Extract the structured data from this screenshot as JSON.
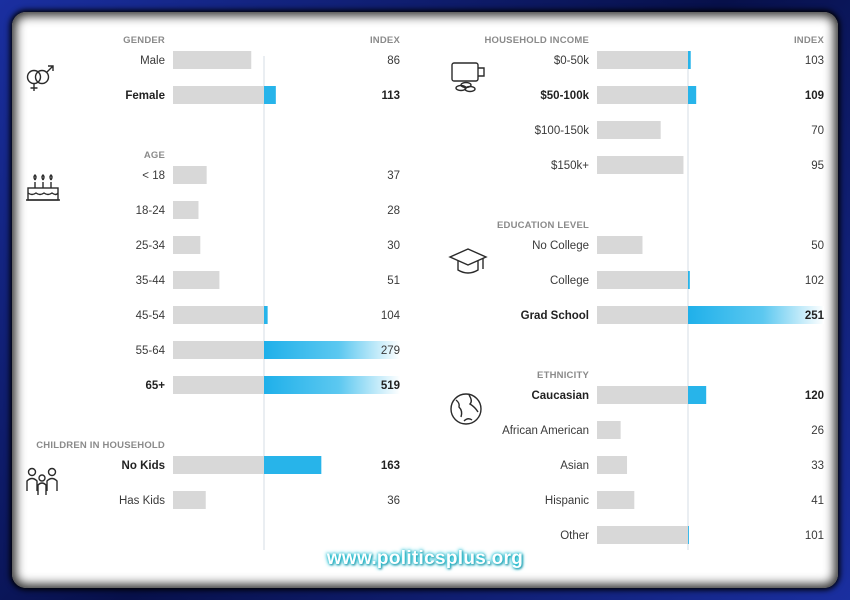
{
  "watermark": "www.politicsplus.org",
  "colors": {
    "bar_base": "#d8d8d8",
    "bar_over": "#27b4ea",
    "baseline": "#d4dde4"
  },
  "chart_data": {
    "type": "bar",
    "baseline_index": 100,
    "panels": [
      {
        "id": "left",
        "index_header": "INDEX",
        "sections": [
          {
            "title": "GENDER",
            "icon": "gender-icon",
            "categories": [
              "Male",
              "Female"
            ],
            "values": [
              86,
              113
            ],
            "bold": [
              false,
              true
            ]
          },
          {
            "title": "AGE",
            "icon": "birthday-cake-icon",
            "categories": [
              "< 18",
              "18-24",
              "25-34",
              "35-44",
              "45-54",
              "55-64",
              "65+"
            ],
            "values": [
              37,
              28,
              30,
              51,
              104,
              279,
              519
            ],
            "bold": [
              false,
              false,
              false,
              false,
              false,
              false,
              true
            ]
          },
          {
            "title": "CHILDREN IN HOUSEHOLD",
            "icon": "family-icon",
            "categories": [
              "No Kids",
              "Has Kids"
            ],
            "values": [
              163,
              36
            ],
            "bold": [
              true,
              false
            ]
          }
        ]
      },
      {
        "id": "right",
        "index_header": "INDEX",
        "sections": [
          {
            "title": "HOUSEHOLD INCOME",
            "icon": "wallet-icon",
            "categories": [
              "$0-50k",
              "$50-100k",
              "$100-150k",
              "$150k+"
            ],
            "values": [
              103,
              109,
              70,
              95
            ],
            "bold": [
              false,
              true,
              false,
              false
            ]
          },
          {
            "title": "EDUCATION LEVEL",
            "icon": "graduation-cap-icon",
            "categories": [
              "No College",
              "College",
              "Grad School"
            ],
            "values": [
              50,
              102,
              251
            ],
            "bold": [
              false,
              false,
              true
            ]
          },
          {
            "title": "ETHNICITY",
            "icon": "globe-icon",
            "categories": [
              "Caucasian",
              "African American",
              "Asian",
              "Hispanic",
              "Other"
            ],
            "values": [
              120,
              26,
              33,
              41,
              101
            ],
            "bold": [
              true,
              false,
              false,
              false,
              false
            ]
          }
        ]
      }
    ]
  }
}
